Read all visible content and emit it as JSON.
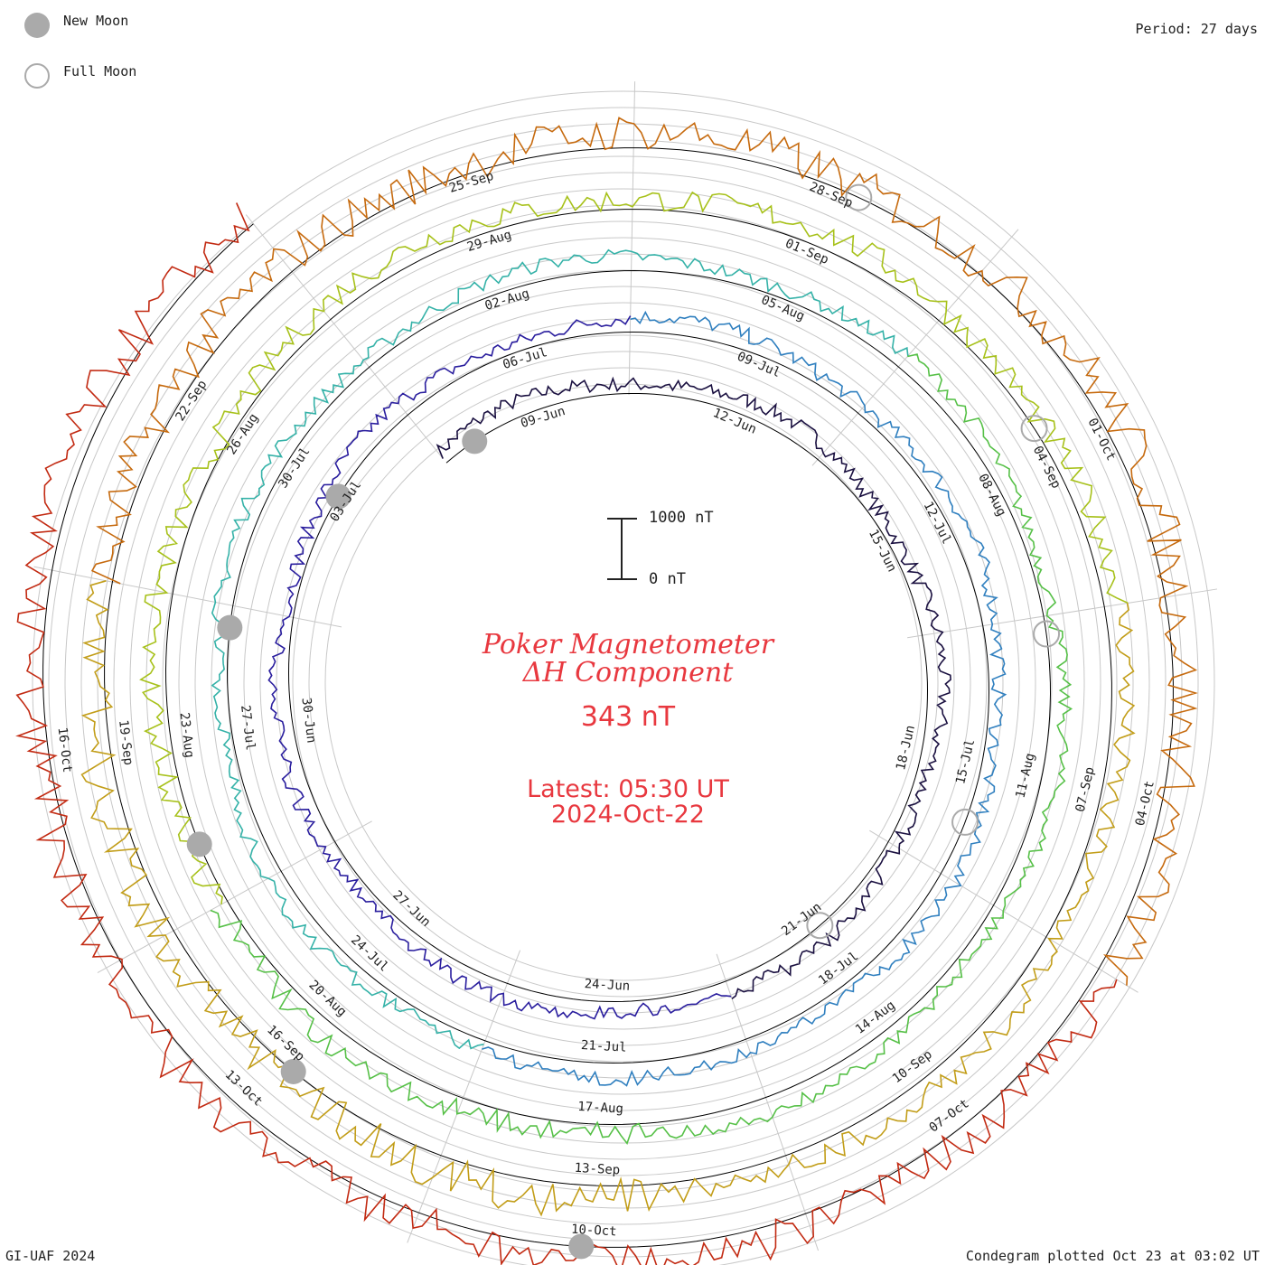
{
  "header": {
    "legend": [
      {
        "label": "New Moon",
        "kind": "filled"
      },
      {
        "label": "Full Moon",
        "kind": "open"
      }
    ],
    "period": "Period: 27 days"
  },
  "title": {
    "line1": "Poker Magnetometer",
    "line2": "ΔH Component",
    "value": "343 nT",
    "latest_time": "Latest: 05:30 UT",
    "latest_date": "2024-Oct-22"
  },
  "scale_bar": {
    "top_label": "1000 nT",
    "bottom_label": "0 nT"
  },
  "footer": {
    "credit": "GI-UAF 2024",
    "plotted": "Condegram plotted Oct 23 at 03:02 UT"
  },
  "chart_data": {
    "type": "line",
    "chart_subtype": "condegram spiral (time wraps around a circle every 27 days)",
    "period_days": 27,
    "series_colors": [
      "#1a1040",
      "#2a1e9e",
      "#2f7fbf",
      "#35b2a8",
      "#56c047",
      "#a7c11a",
      "#c29d18",
      "#c66a0e",
      "#c22a12"
    ],
    "moon_markers": {
      "new_moon_color": "#aaaaaa",
      "full_moon_stroke": "#aaaaaa"
    },
    "date_labels": [
      {
        "text": "09-Jun",
        "turn": 1
      },
      {
        "text": "12-Jun",
        "turn": 1
      },
      {
        "text": "15-Jun",
        "turn": 1
      },
      {
        "text": "18-Jun",
        "turn": 1
      },
      {
        "text": "21-Jun",
        "turn": 1
      },
      {
        "text": "24-Jun",
        "turn": 1
      },
      {
        "text": "27-Jun",
        "turn": 1
      },
      {
        "text": "30-Jun",
        "turn": 1
      },
      {
        "text": "03-Jul",
        "turn": 1
      },
      {
        "text": "06-Jul",
        "turn": 2
      },
      {
        "text": "09-Jul",
        "turn": 2
      },
      {
        "text": "12-Jul",
        "turn": 2
      },
      {
        "text": "15-Jul",
        "turn": 2
      },
      {
        "text": "18-Jul",
        "turn": 2
      },
      {
        "text": "21-Jul",
        "turn": 2
      },
      {
        "text": "24-Jul",
        "turn": 2
      },
      {
        "text": "27-Jul",
        "turn": 2
      },
      {
        "text": "30-Jul",
        "turn": 2
      },
      {
        "text": "02-Aug",
        "turn": 3
      },
      {
        "text": "05-Aug",
        "turn": 3
      },
      {
        "text": "08-Aug",
        "turn": 3
      },
      {
        "text": "11-Aug",
        "turn": 3
      },
      {
        "text": "14-Aug",
        "turn": 3
      },
      {
        "text": "17-Aug",
        "turn": 3
      },
      {
        "text": "20-Aug",
        "turn": 3
      },
      {
        "text": "23-Aug",
        "turn": 3
      },
      {
        "text": "26-Aug",
        "turn": 3
      },
      {
        "text": "29-Aug",
        "turn": 4
      },
      {
        "text": "01-Sep",
        "turn": 4
      },
      {
        "text": "04-Sep",
        "turn": 4
      },
      {
        "text": "07-Sep",
        "turn": 4
      },
      {
        "text": "10-Sep",
        "turn": 4
      },
      {
        "text": "13-Sep",
        "turn": 4
      },
      {
        "text": "16-Sep",
        "turn": 4
      },
      {
        "text": "19-Sep",
        "turn": 4
      },
      {
        "text": "22-Sep",
        "turn": 4
      },
      {
        "text": "25-Sep",
        "turn": 5
      },
      {
        "text": "28-Sep",
        "turn": 5
      },
      {
        "text": "01-Oct",
        "turn": 5
      },
      {
        "text": "04-Oct",
        "turn": 5
      },
      {
        "text": "07-Oct",
        "turn": 5
      },
      {
        "text": "10-Oct",
        "turn": 5
      },
      {
        "text": "13-Oct",
        "turn": 5
      },
      {
        "text": "16-Oct",
        "turn": 5
      }
    ],
    "y_units": "nT",
    "scale_reference": [
      0,
      1000
    ],
    "latest_value_nT": 343
  }
}
